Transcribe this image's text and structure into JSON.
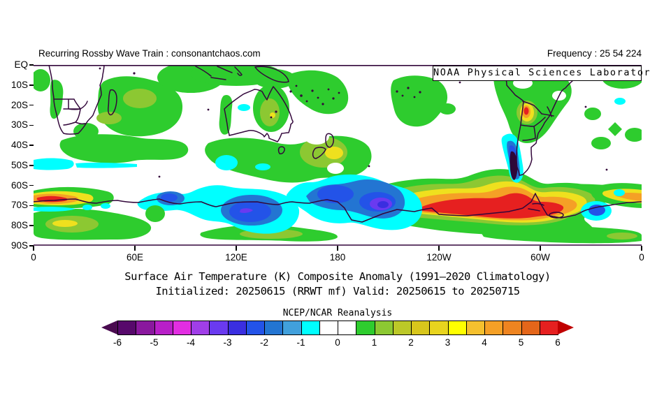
{
  "header": {
    "left": "Recurring Rossby Wave Train : consonantchaos.com",
    "right": "Frequency : 25 54 224"
  },
  "map": {
    "overlay_label": "NOAA Physical Sciences Laboratory",
    "lat_labels": [
      "EQ",
      "10S",
      "20S",
      "30S",
      "40S",
      "50S",
      "60S",
      "70S",
      "80S",
      "90S"
    ],
    "lon_labels": [
      "0",
      "60E",
      "120E",
      "180",
      "120W",
      "60W",
      "0"
    ]
  },
  "caption": {
    "line1": "Surface Air Temperature (K) Composite Anomaly (1991–2020 Climatology)",
    "line2": "Initialized: 20250615 (RRWT mf) Valid: 20250615 to 20250715",
    "line3": "NCEP/NCAR Reanalysis"
  },
  "colorbar": {
    "tick_labels": [
      "-6",
      "-5",
      "-4",
      "-3",
      "-2",
      "-1",
      "0",
      "1",
      "2",
      "3",
      "4",
      "5",
      "6"
    ],
    "colors": [
      "#57096B",
      "#8A189E",
      "#B81FC8",
      "#E22EE2",
      "#A03EE8",
      "#6A3AF0",
      "#3A2EE0",
      "#2353E8",
      "#2375D2",
      "#41A0DC",
      "#00FFFF",
      "#FFFFFF",
      "#FFFFFF",
      "#2ECC2E",
      "#8CC832",
      "#BCC828",
      "#D8C61C",
      "#E8D41E",
      "#FFFF00",
      "#F5C02E",
      "#F5A026",
      "#EE8420",
      "#E4661A",
      "#E62020"
    ],
    "arrow_left_color": "#4A0B50",
    "arrow_right_color": "#C00000"
  },
  "chart_data": {
    "type": "heatmap",
    "title": "Surface Air Temperature (K) Composite Anomaly (1991–2020 Climatology)",
    "subtitle": "Initialized: 20250615 (RRWT mf) Valid: 20250615 to 20250715",
    "source": "NCEP/NCAR Reanalysis",
    "provider": "NOAA Physical Sciences Laboratory",
    "variable": "Surface Air Temperature Composite Anomaly",
    "units": "K",
    "lat_range": [
      "EQ",
      "90S"
    ],
    "lon_range": [
      "0",
      "360 (0E eastward to 0W)"
    ],
    "x_ticks": [
      "0",
      "60E",
      "120E",
      "180",
      "120W",
      "60W",
      "0"
    ],
    "y_ticks": [
      "EQ",
      "10S",
      "20S",
      "30S",
      "40S",
      "50S",
      "60S",
      "70S",
      "80S",
      "90S"
    ],
    "contour_levels": [
      -6,
      -5.5,
      -5,
      -4.5,
      -4,
      -3.5,
      -3,
      -2.5,
      -2,
      -1.5,
      -1,
      -0.5,
      0,
      0.5,
      1,
      1.5,
      2,
      2.5,
      3,
      3.5,
      4,
      4.5,
      5,
      5.5,
      6
    ],
    "legend_position": "bottom",
    "features": [
      {
        "name": "warm tongue along East Antarctic coast 0-45E near 66-69S",
        "anomaly_K": "+2 to +6 (red core ~10-30E)"
      },
      {
        "name": "cold pool along East Antarctica 55E-150E, 62-76S",
        "anomaly_K": "-1 to -4 (blue/violet core ~100-120E)"
      },
      {
        "name": "Ross Sea / Pacific sector cold pool 150E-150W, 60-75S",
        "anomaly_K": "-2 to -4.5 (violet core ~170-160W)"
      },
      {
        "name": "West Antarctica / Bellingshausen warm plume 140W-30W, 65-80S",
        "anomaly_K": "+3 to +6 (broad red core 110W-60W)"
      },
      {
        "name": "Patagonia / southern Andes cold wedge ~70W, 38-56S",
        "anomaly_K": "-3 to -6 (dark purple core)"
      },
      {
        "name": "northern Argentina warm spot ~65W, 22-28S",
        "anomaly_K": "+2 to +5"
      },
      {
        "name": "cyan cool strip 0-25E, 46-50S",
        "anomaly_K": "-0.5 to -1"
      },
      {
        "name": "cool spot central Australia ~125E, 21S",
        "anomaly_K": "-0.5 to -1"
      },
      {
        "name": "cool patch ~108-120E, 45-52S and cold blob 30-40W, 70-75S",
        "anomaly_K": "-0.5 to -2"
      },
      {
        "name": "broad weak warm anomaly over subtropics, Indian Ocean, Australia, SW Pacific, South America, polar cap",
        "anomaly_K": "+0.5 to +2 (green / yellow-green)"
      },
      {
        "name": "neutral white areas central South Pacific, central subtropical oceans",
        "anomaly_K": "-0.5 to +0.5"
      }
    ]
  }
}
